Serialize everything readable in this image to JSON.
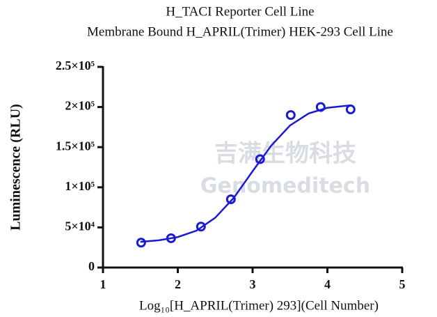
{
  "chart_data": {
    "type": "scatter",
    "title": "H_TACI Reporter Cell Line",
    "subtitle": "Membrane Bound H_APRIL(Trimer) HEK-293 Cell Line",
    "x_label": "Log₁₀[H_APRIL(Trimer) 293](Cell Number)",
    "y_label": "Luminescence (RLU)",
    "watermark": [
      "吉满生物科技",
      "Genomeditech"
    ],
    "x": [
      1.51,
      1.91,
      2.31,
      2.71,
      3.1,
      3.51,
      3.91,
      4.31
    ],
    "values": [
      31000,
      36500,
      51000,
      85000,
      135000,
      190000,
      200000,
      197000
    ],
    "color": "#1a1ad4",
    "curve": {
      "x": [
        1.5,
        1.75,
        2.0,
        2.25,
        2.5,
        2.75,
        3.0,
        3.25,
        3.5,
        3.75,
        4.0,
        4.3
      ],
      "values": [
        32000,
        34000,
        38000,
        46000,
        62000,
        87000,
        120000,
        152000,
        177000,
        192000,
        199000,
        202000
      ]
    },
    "xlim": [
      1,
      5
    ],
    "xticks": [
      1,
      2,
      3,
      4,
      5
    ],
    "ylim": [
      0,
      250000
    ],
    "yticks": [
      0,
      {
        "value": 50000,
        "label": "5×10⁴"
      },
      {
        "value": 100000,
        "label": "1×10⁵"
      },
      {
        "value": 150000,
        "label": "1.5×10⁵"
      },
      {
        "value": 200000,
        "label": "2×10⁵"
      },
      {
        "value": 250000,
        "label": "2.5×10⁵"
      }
    ],
    "grid": false
  }
}
